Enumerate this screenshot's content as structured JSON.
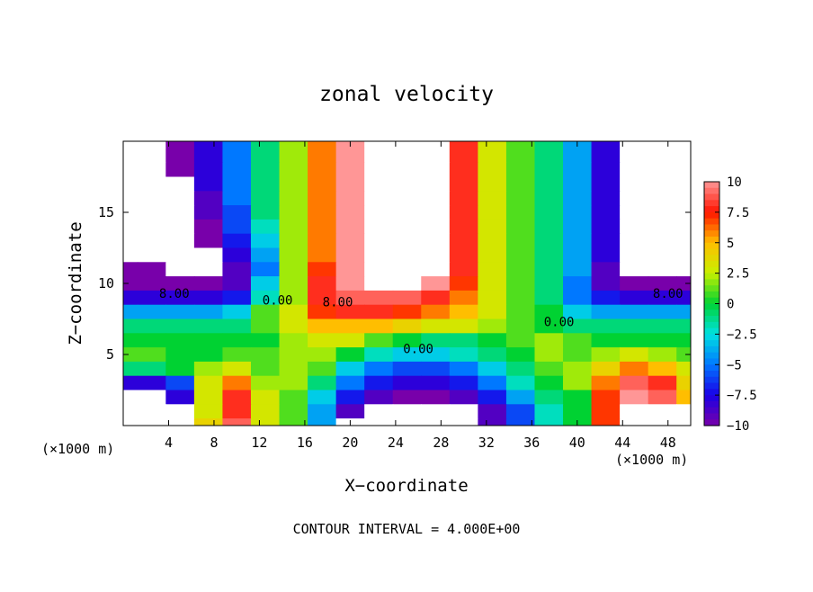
{
  "chart_data": {
    "type": "heatmap",
    "title": "zonal velocity",
    "xlabel": "X−coordinate",
    "ylabel": "Z−coordinate",
    "x_unit_left": "(×1000 m)",
    "x_unit_right": "(×1000 m)",
    "footer": "CONTOUR INTERVAL = 4.000E+00",
    "xlim": [
      0,
      50
    ],
    "ylim": [
      0,
      20
    ],
    "x_ticks": [
      4,
      8,
      12,
      16,
      20,
      24,
      28,
      32,
      36,
      40,
      44,
      48
    ],
    "y_ticks": [
      5,
      10,
      15
    ],
    "colorbar": {
      "range": [
        -10,
        10
      ],
      "ticks": [
        10,
        7.5,
        5,
        2.5,
        0,
        -2.5,
        -5,
        -7.5,
        -10
      ],
      "tick_labels": [
        "10",
        "7.5",
        "5",
        "2.5",
        "0",
        "−2.5",
        "−5",
        "−7.5",
        "−10"
      ]
    },
    "contour_labels": [
      {
        "text": "8.00",
        "x": 4.5,
        "y": 9.0
      },
      {
        "text": "0.00",
        "x": 13.6,
        "y": 8.5
      },
      {
        "text": "8.00",
        "x": 18.9,
        "y": 8.4
      },
      {
        "text": "0.00",
        "x": 26.0,
        "y": 5.1
      },
      {
        "text": "0.00",
        "x": 38.4,
        "y": 7.0
      },
      {
        "text": "8.00",
        "x": 48.0,
        "y": 9.0
      }
    ],
    "grid": {
      "x": [
        0,
        2.5,
        5,
        7.5,
        10,
        12.5,
        15,
        17.5,
        20,
        22.5,
        25,
        27.5,
        30,
        32.5,
        35,
        37.5,
        40,
        42.5,
        45,
        47.5,
        50
      ],
      "z": [
        20,
        19,
        18,
        17,
        16,
        15,
        14,
        13,
        12,
        11,
        10,
        9,
        8,
        7,
        6,
        5,
        4,
        3,
        2,
        1,
        0
      ],
      "values": [
        [
          13,
          -11,
          -10,
          -8,
          -5,
          -1,
          2,
          6,
          10,
          14,
          14,
          12,
          8,
          3,
          1,
          -1,
          -4,
          -8,
          -11,
          -12,
          -12
        ],
        [
          13,
          -11,
          -10,
          -8,
          -5,
          -1,
          2,
          6,
          10,
          14,
          14,
          12,
          8,
          3,
          1,
          -1,
          -4,
          -8,
          -11,
          -12,
          -12
        ],
        [
          13,
          12,
          -10,
          -8,
          -5,
          -1,
          2,
          6,
          10,
          14,
          14,
          12,
          8,
          3,
          1,
          -1,
          -4,
          -8,
          -11,
          -12,
          -12
        ],
        [
          13,
          12,
          -11,
          -8,
          -5,
          -1,
          2,
          6,
          10,
          14,
          14,
          12,
          8,
          3,
          1,
          -1,
          -4,
          -8,
          -11,
          13,
          13
        ],
        [
          13,
          12,
          12,
          -9,
          -5,
          -1,
          2,
          6,
          10,
          14,
          14,
          12,
          8,
          3,
          1,
          -1,
          -4,
          -8,
          -11,
          13,
          13
        ],
        [
          13,
          12,
          12,
          -9,
          -6,
          -1,
          2,
          6,
          10,
          14,
          14,
          12,
          8,
          3,
          1,
          -1,
          -4,
          -8,
          -11,
          13,
          13
        ],
        [
          13,
          12,
          12,
          -10,
          -6,
          -2,
          2,
          6,
          10,
          14,
          14,
          12,
          8,
          3,
          1,
          -1,
          -4,
          -8,
          -11,
          13,
          13
        ],
        [
          13,
          12,
          12,
          -10,
          -7,
          -3,
          2,
          6,
          10,
          14,
          14,
          12,
          8,
          3,
          1,
          -1,
          -4,
          -8,
          -11,
          13,
          13
        ],
        [
          13,
          12,
          12,
          -11,
          -8,
          -4,
          2,
          6,
          10,
          14,
          14,
          12,
          8,
          3,
          1,
          -1,
          -4,
          -8,
          -11,
          13,
          13
        ],
        [
          -10,
          -10,
          -11,
          -11,
          -9,
          -5,
          2,
          7,
          10,
          14,
          13,
          12,
          8,
          3,
          1,
          -1,
          -4,
          -9,
          -11,
          -11,
          -11
        ],
        [
          -10,
          -10,
          -10,
          -10,
          -9,
          -3,
          2,
          8,
          10,
          12,
          12,
          10,
          7,
          3,
          1,
          -1,
          -5,
          -9,
          -10,
          -10,
          -10
        ],
        [
          -8,
          -8,
          -8,
          -8,
          -7,
          -2,
          2,
          8,
          9,
          9,
          9,
          8,
          6,
          3,
          1,
          -1,
          -5,
          -7,
          -8,
          -8,
          -8
        ],
        [
          -4,
          -4,
          -4,
          -4,
          -3,
          1,
          3,
          7,
          8,
          8,
          7,
          6,
          5,
          3,
          1,
          0,
          -3,
          -4,
          -4,
          -4,
          -4
        ],
        [
          -1,
          -1,
          -1,
          -1,
          -1,
          1,
          3,
          5,
          5,
          5,
          4,
          3,
          3,
          2,
          1,
          0,
          -1,
          -1,
          -1,
          -1,
          -1
        ],
        [
          0,
          0,
          0,
          0,
          0,
          0,
          2,
          3,
          3,
          1,
          0,
          -1,
          -1,
          0,
          1,
          2,
          1,
          0,
          0,
          0,
          0
        ],
        [
          1,
          1,
          0,
          0,
          1,
          1,
          2,
          2,
          0,
          -2,
          -3,
          -3,
          -2,
          -1,
          0,
          2,
          1,
          2,
          3,
          2,
          1
        ],
        [
          -1,
          -1,
          0,
          2,
          3,
          1,
          2,
          1,
          -3,
          -5,
          -6,
          -6,
          -5,
          -3,
          -1,
          1,
          2,
          4,
          6,
          5,
          3
        ],
        [
          -8,
          -8,
          -6,
          3,
          6,
          2,
          2,
          -1,
          -5,
          -7,
          -8,
          -8,
          -7,
          -5,
          -2,
          0,
          2,
          6,
          9,
          8,
          4
        ],
        [
          12,
          12,
          -8,
          3,
          8,
          3,
          1,
          -3,
          -7,
          -9,
          -10,
          -10,
          -9,
          -7,
          -4,
          -1,
          0,
          7,
          10,
          9,
          5
        ],
        [
          12,
          12,
          13,
          3,
          8,
          3,
          1,
          -4,
          -9,
          11,
          11,
          11,
          11,
          -9,
          -6,
          -2,
          0,
          7,
          12,
          13,
          13
        ],
        [
          12,
          12,
          13,
          4,
          9,
          3,
          1,
          -4,
          12,
          12,
          12,
          12,
          12,
          -9,
          -6,
          -2,
          0,
          7,
          12,
          13,
          13
        ]
      ]
    }
  }
}
